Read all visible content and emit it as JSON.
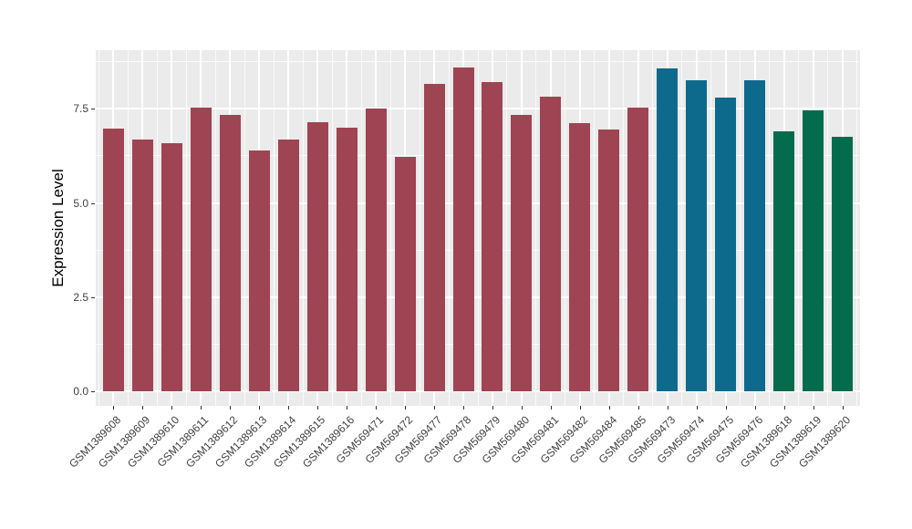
{
  "chart_data": {
    "type": "bar",
    "title": "",
    "xlabel": "",
    "ylabel": "Expression Level",
    "legend": "none",
    "grid": "on",
    "panel_background": "#EBEBEB",
    "gridline_color": "#FFFFFF",
    "axis_text_color": "#404040",
    "categories": [
      "GSM1389608",
      "GSM1389609",
      "GSM1389610",
      "GSM1389611",
      "GSM1389612",
      "GSM1389613",
      "GSM1389614",
      "GSM1389615",
      "GSM1389616",
      "GSM569471",
      "GSM569472",
      "GSM569477",
      "GSM569478",
      "GSM569479",
      "GSM569480",
      "GSM569481",
      "GSM569482",
      "GSM569484",
      "GSM569485",
      "GSM569473",
      "GSM569474",
      "GSM569475",
      "GSM569476",
      "GSM1389618",
      "GSM1389619",
      "GSM1389620"
    ],
    "values": [
      6.97,
      6.69,
      6.6,
      7.54,
      7.35,
      6.39,
      6.68,
      7.15,
      7.01,
      7.5,
      6.22,
      8.16,
      8.6,
      8.2,
      7.35,
      7.82,
      7.13,
      6.94,
      7.53,
      8.57,
      8.25,
      7.79,
      8.25,
      6.9,
      7.45,
      6.76
    ],
    "bar_groups": [
      "maroon",
      "maroon",
      "maroon",
      "maroon",
      "maroon",
      "maroon",
      "maroon",
      "maroon",
      "maroon",
      "maroon",
      "maroon",
      "maroon",
      "maroon",
      "maroon",
      "maroon",
      "maroon",
      "maroon",
      "maroon",
      "maroon",
      "teal",
      "teal",
      "teal",
      "teal",
      "green",
      "green",
      "green"
    ],
    "group_colors": {
      "maroon": "#9E4452",
      "teal": "#0E6A8C",
      "green": "#046B4D"
    },
    "y_axis": {
      "tick_labels": [
        "0.0",
        "2.5",
        "5.0",
        "7.5"
      ],
      "tick_values": [
        0,
        2.5,
        5.0,
        7.5
      ],
      "minor_values": [
        1.25,
        3.75,
        6.25,
        8.75
      ],
      "ylim": [
        -0.39,
        9.06
      ]
    }
  }
}
